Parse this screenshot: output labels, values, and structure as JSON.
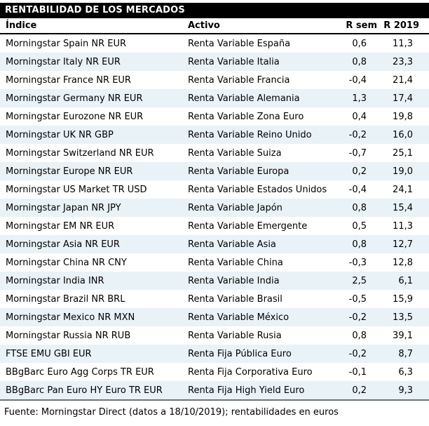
{
  "title": "RENTABILIDAD DE LOS MERCADOS",
  "columns": [
    "Índice",
    "Activo",
    "R sem",
    "R 2019"
  ],
  "rows": [
    [
      "Morningstar Spain NR EUR",
      "Renta Variable España",
      "0,6",
      "11,3"
    ],
    [
      "Morningstar Italy NR EUR",
      "Renta Variable Italia",
      "0,8",
      "23,3"
    ],
    [
      "Morningstar France NR EUR",
      "Renta Variable Francia",
      "-0,4",
      "21,4"
    ],
    [
      "Morningstar Germany NR EUR",
      "Renta Variable Alemania",
      "1,3",
      "17,4"
    ],
    [
      "Morningstar Eurozone NR EUR",
      "Renta Variable Zona Euro",
      "0,4",
      "19,8"
    ],
    [
      "Morningstar UK NR GBP",
      "Renta Variable Reino Unido",
      "-0,2",
      "16,0"
    ],
    [
      "Morningstar Switzerland NR EUR",
      "Renta Variable Suiza",
      "-0,7",
      "25,1"
    ],
    [
      "Morningstar Europe NR EUR",
      "Renta Variable Europa",
      "0,2",
      "19,0"
    ],
    [
      "Morningstar US Market TR USD",
      "Renta Variable Estados Unidos",
      "-0,4",
      "24,1"
    ],
    [
      "Morningstar Japan NR JPY",
      "Renta Variable Japón",
      "0,8",
      "15,4"
    ],
    [
      "Morningstar EM NR EUR",
      "Renta Variable Emergente",
      "0,5",
      "11,3"
    ],
    [
      "Morningstar Asia NR EUR",
      "Renta Variable Asia",
      "0,8",
      "12,7"
    ],
    [
      "Morningstar China NR CNY",
      "Renta Variable China",
      "-0,3",
      "12,8"
    ],
    [
      "Morningstar India INR",
      "Renta Variable India",
      "2,5",
      "6,1"
    ],
    [
      "Morningstar Brazil NR BRL",
      "Renta Variable Brasil",
      "-0,5",
      "15,9"
    ],
    [
      "Morningstar Mexico NR MXN",
      "Renta Variable México",
      "-0,2",
      "13,5"
    ],
    [
      "Morningstar Russia NR RUB",
      "Renta Variable Rusia",
      "0,8",
      "39,1"
    ],
    [
      "FTSE EMU GBI EUR",
      "Renta Fija Pública Euro",
      "-0,2",
      "8,7"
    ],
    [
      "BBgBarc Euro Agg Corps TR EUR",
      "Renta Fija Corporativa Euro",
      "-0,1",
      "6,3"
    ],
    [
      "BBgBarc Pan Euro HY Euro TR EUR",
      "Renta Fija High Yield Euro",
      "0,2",
      "9,3"
    ]
  ],
  "footer": "Fuente: Morningstar Direct (datos a 18/10/2019); rentabilidades en euros",
  "colors": {
    "title_bg": "#000000",
    "title_fg": "#ffffff",
    "row_stripe": "#e9f2f7",
    "header_rule": "#000000",
    "bottom_rule": "#6b7575"
  }
}
